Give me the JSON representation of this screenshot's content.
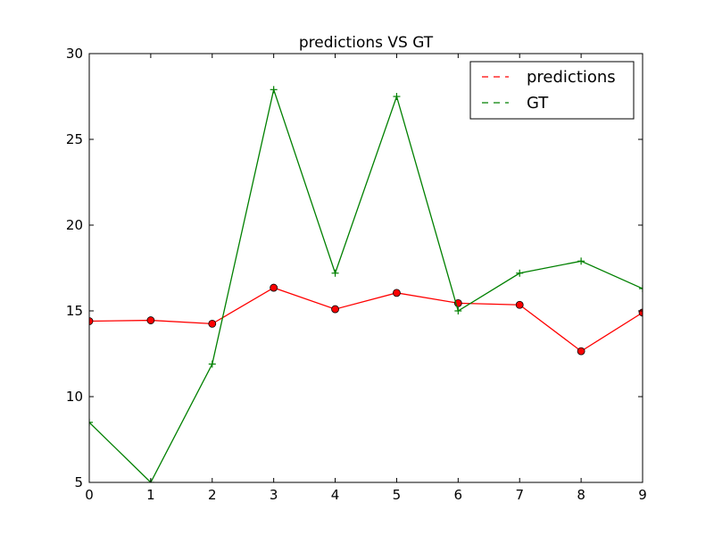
{
  "chart_data": {
    "type": "line",
    "title": "predictions VS GT",
    "xlabel": "",
    "ylabel": "",
    "x": [
      0,
      1,
      2,
      3,
      4,
      5,
      6,
      7,
      8,
      9
    ],
    "xlim": [
      0,
      9
    ],
    "ylim": [
      5,
      30
    ],
    "xticks": [
      "0",
      "1",
      "2",
      "3",
      "4",
      "5",
      "6",
      "7",
      "8",
      "9"
    ],
    "yticks": [
      "5",
      "10",
      "15",
      "20",
      "25",
      "30"
    ],
    "grid": false,
    "legend_position": "top-right",
    "series": [
      {
        "name": "predictions",
        "color": "#ff0000",
        "marker": "circle",
        "values": [
          14.4,
          14.45,
          14.25,
          16.35,
          15.1,
          16.05,
          15.45,
          15.35,
          12.65,
          14.9
        ]
      },
      {
        "name": "GT",
        "color": "#008000",
        "marker": "plus",
        "values": [
          8.5,
          5.0,
          11.9,
          27.9,
          17.2,
          27.5,
          15.0,
          17.2,
          17.9,
          16.3
        ]
      }
    ]
  }
}
